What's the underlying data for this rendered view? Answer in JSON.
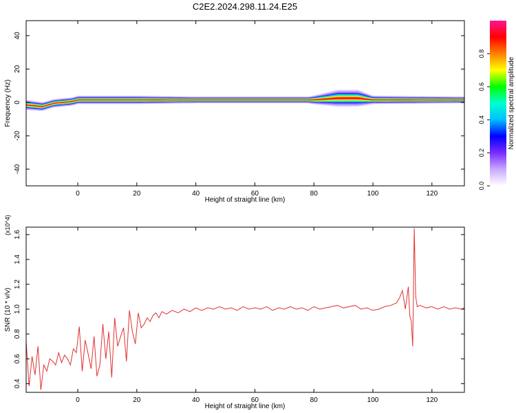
{
  "title": "C2E2.2024.298.11.24.E25",
  "chart_data": [
    {
      "type": "heatmap",
      "xlabel": "Height of straight line (km)",
      "ylabel": "Frequency (Hz)",
      "xlim": [
        -17.5,
        131
      ],
      "ylim": [
        -50,
        49
      ],
      "xticks": [
        0,
        20,
        40,
        60,
        80,
        100,
        120
      ],
      "yticks": [
        -40,
        -20,
        0,
        20,
        40
      ],
      "colorbar": {
        "label": "Normalized spectral amplitude",
        "range": [
          0.0,
          1.0
        ],
        "ticks": [
          0.0,
          0.2,
          0.4,
          0.6,
          0.8
        ],
        "tick_labels": [
          "0.0",
          "0.2",
          "0.4",
          "0.6",
          "0.8"
        ],
        "colors": [
          "#ffffff",
          "#c9a9ff",
          "#7a2cff",
          "#0000ff",
          "#00bfff",
          "#00ffd0",
          "#00ff00",
          "#ffff00",
          "#ff8000",
          "#ff0000",
          "#ff1493"
        ]
      },
      "band_center_hz": [
        [
          -17.5,
          -1.5
        ],
        [
          -12,
          -2.5
        ],
        [
          -8,
          -0.5
        ],
        [
          -2,
          0.5
        ],
        [
          0,
          1.5
        ],
        [
          10,
          1.5
        ],
        [
          20,
          1.5
        ],
        [
          40,
          1.5
        ],
        [
          60,
          1.5
        ],
        [
          80,
          1.5
        ],
        [
          88,
          2.5
        ],
        [
          95,
          2.5
        ],
        [
          100,
          1.5
        ],
        [
          110,
          1.5
        ],
        [
          120,
          1.5
        ],
        [
          131,
          1.5
        ]
      ],
      "band_halfwidth_hz": [
        [
          -17.5,
          3
        ],
        [
          -10,
          2.5
        ],
        [
          0,
          2.5
        ],
        [
          20,
          2.5
        ],
        [
          40,
          2
        ],
        [
          78,
          2
        ],
        [
          88,
          5
        ],
        [
          95,
          5
        ],
        [
          100,
          2.5
        ],
        [
          131,
          2
        ]
      ],
      "grid": false
    },
    {
      "type": "line",
      "xlabel": "Height of straight line (km)",
      "ylabel": "SNR (10 * v/v)",
      "y_multiplier": "(x10^4)",
      "xlim": [
        -17.5,
        131
      ],
      "ylim": [
        0.33,
        1.66
      ],
      "xticks": [
        0,
        20,
        40,
        60,
        80,
        100,
        120
      ],
      "yticks": [
        0.4,
        0.6,
        0.8,
        1.0,
        1.2,
        1.4,
        1.6
      ],
      "ytick_labels": [
        "0.4",
        "0.6",
        "0.8",
        "1.0",
        "1.2",
        "1.4",
        "1.6"
      ],
      "series": [
        {
          "color": "#e03030",
          "x": [
            -17.5,
            -16.5,
            -15.5,
            -14.5,
            -13.5,
            -12.5,
            -11.5,
            -10.5,
            -9.5,
            -8.5,
            -7.5,
            -6.5,
            -5.5,
            -4.5,
            -3.5,
            -2.5,
            -1.5,
            -0.5,
            0.5,
            1.5,
            2.5,
            3.5,
            4.5,
            5.5,
            6.5,
            7.5,
            8.5,
            9.5,
            10.5,
            11.5,
            12.5,
            13.5,
            14.5,
            15.5,
            16.5,
            17.5,
            18.5,
            19.5,
            20.5,
            21.5,
            22.5,
            23.5,
            24.5,
            25.5,
            26.5,
            27.5,
            28.5,
            30,
            32,
            34,
            36,
            38,
            40,
            42,
            44,
            46,
            48,
            50,
            52,
            54,
            56,
            58,
            60,
            62,
            64,
            66,
            68,
            70,
            72,
            74,
            76,
            78,
            80,
            82,
            84,
            86,
            88,
            90,
            92,
            94,
            96,
            98,
            100,
            102,
            104,
            106,
            108,
            109,
            110,
            111,
            112,
            112.5,
            113,
            113.5,
            114,
            114.5,
            115,
            116,
            118,
            120,
            122,
            124,
            126,
            128,
            130,
            131
          ],
          "y": [
            0.74,
            0.38,
            0.62,
            0.47,
            0.7,
            0.35,
            0.55,
            0.5,
            0.6,
            0.58,
            0.55,
            0.65,
            0.57,
            0.63,
            0.6,
            0.55,
            0.68,
            0.65,
            0.86,
            0.5,
            0.75,
            0.64,
            0.52,
            0.78,
            0.46,
            0.55,
            0.88,
            0.6,
            0.82,
            0.45,
            0.93,
            0.7,
            0.78,
            0.85,
            0.58,
            0.99,
            0.82,
            0.72,
            0.97,
            0.85,
            0.88,
            0.93,
            0.9,
            0.95,
            0.97,
            0.93,
            0.98,
            0.96,
            0.99,
            0.97,
            1.0,
            0.98,
            1.01,
            0.99,
            1.01,
            1.0,
            1.02,
            1.0,
            1.01,
            0.99,
            1.02,
            1.0,
            1.01,
            1.0,
            1.02,
            0.99,
            1.01,
            1.0,
            1.02,
            1.0,
            1.01,
            0.99,
            1.02,
            1.0,
            1.01,
            1.02,
            1.03,
            1.01,
            1.02,
            1.03,
            1.0,
            1.01,
            0.99,
            1.0,
            1.02,
            1.03,
            1.05,
            1.09,
            1.15,
            1.0,
            1.18,
            0.95,
            0.9,
            0.7,
            1.65,
            1.1,
            1.02,
            1.03,
            1.01,
            1.02,
            1.0,
            1.02,
            1.0,
            1.01,
            1.0,
            1.01
          ]
        }
      ],
      "grid": false
    }
  ]
}
